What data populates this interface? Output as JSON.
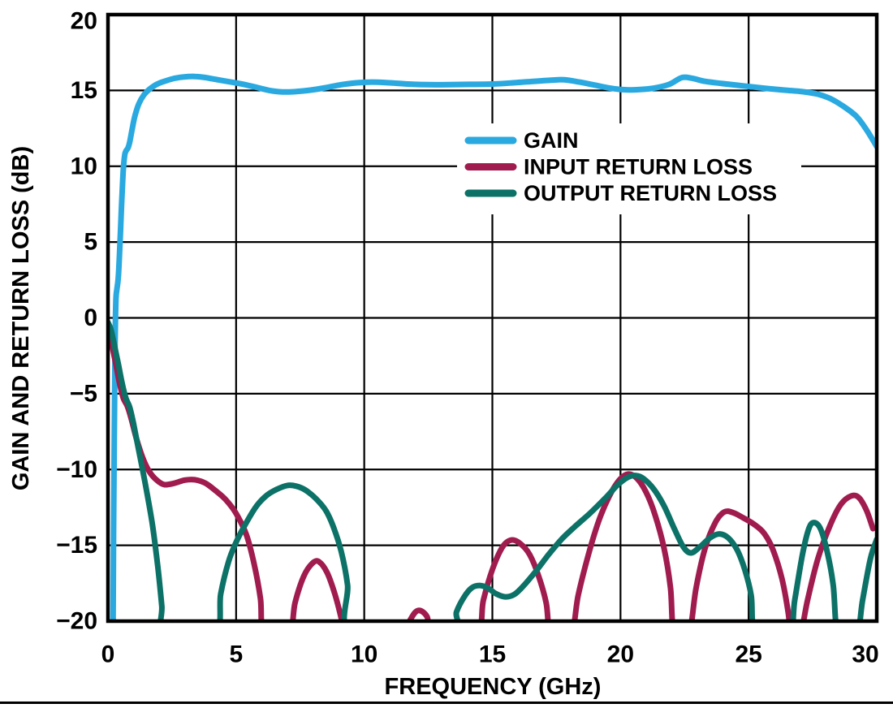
{
  "figure": {
    "background": "#ffffff",
    "axis_color": "#000000",
    "grid_color": "#000000",
    "bottom_rule_color": "#000000"
  },
  "chart_data": {
    "type": "line",
    "title": "",
    "xlabel": "FREQUENCY (GHz)",
    "ylabel": "GAIN AND RETURN LOSS (dB)",
    "xlim": [
      0,
      30
    ],
    "ylim": [
      -20,
      20
    ],
    "x_ticks": [
      0,
      5,
      10,
      15,
      20,
      25,
      30
    ],
    "x_tick_labels": [
      "0",
      "5",
      "10",
      "15",
      "20",
      "25",
      "30"
    ],
    "y_ticks": [
      20,
      15,
      10,
      5,
      0,
      -5,
      -10,
      -15,
      -20
    ],
    "y_tick_labels": [
      "20",
      "15",
      "10",
      "5",
      "0",
      "−5",
      "−10",
      "−15",
      "−20"
    ],
    "grid": true,
    "legend_position": "upper-middle",
    "series": [
      {
        "name": "GAIN",
        "color": "#29A9E0",
        "points": [
          [
            0.2,
            -20
          ],
          [
            0.22,
            -14
          ],
          [
            0.25,
            -7
          ],
          [
            0.28,
            -1.5
          ],
          [
            0.31,
            1.2
          ],
          [
            0.35,
            1.9
          ],
          [
            0.4,
            2.6
          ],
          [
            0.45,
            4.2
          ],
          [
            0.5,
            6.2
          ],
          [
            0.55,
            8.2
          ],
          [
            0.6,
            9.8
          ],
          [
            0.65,
            10.7
          ],
          [
            0.7,
            11.0
          ],
          [
            0.78,
            11.2
          ],
          [
            0.85,
            11.6
          ],
          [
            0.95,
            12.5
          ],
          [
            1.05,
            13.3
          ],
          [
            1.2,
            14.1
          ],
          [
            1.4,
            14.7
          ],
          [
            1.6,
            15.05
          ],
          [
            1.9,
            15.4
          ],
          [
            2.2,
            15.6
          ],
          [
            2.6,
            15.8
          ],
          [
            3.0,
            15.9
          ],
          [
            3.4,
            15.92
          ],
          [
            3.8,
            15.85
          ],
          [
            4.3,
            15.7
          ],
          [
            4.8,
            15.55
          ],
          [
            5.3,
            15.4
          ],
          [
            5.8,
            15.2
          ],
          [
            6.3,
            15.0
          ],
          [
            6.8,
            14.9
          ],
          [
            7.3,
            14.92
          ],
          [
            7.9,
            15.02
          ],
          [
            8.5,
            15.18
          ],
          [
            9.1,
            15.38
          ],
          [
            9.7,
            15.5
          ],
          [
            10.3,
            15.55
          ],
          [
            11.0,
            15.5
          ],
          [
            11.7,
            15.42
          ],
          [
            12.5,
            15.38
          ],
          [
            13.3,
            15.38
          ],
          [
            14.1,
            15.4
          ],
          [
            15.0,
            15.42
          ],
          [
            15.8,
            15.5
          ],
          [
            16.6,
            15.6
          ],
          [
            17.3,
            15.68
          ],
          [
            17.8,
            15.7
          ],
          [
            18.4,
            15.55
          ],
          [
            19.0,
            15.35
          ],
          [
            19.6,
            15.15
          ],
          [
            20.1,
            15.05
          ],
          [
            20.7,
            15.05
          ],
          [
            21.3,
            15.15
          ],
          [
            21.9,
            15.4
          ],
          [
            22.4,
            15.85
          ],
          [
            22.8,
            15.8
          ],
          [
            23.3,
            15.6
          ],
          [
            24.0,
            15.45
          ],
          [
            24.8,
            15.3
          ],
          [
            25.6,
            15.15
          ],
          [
            26.4,
            15.02
          ],
          [
            27.1,
            14.92
          ],
          [
            27.7,
            14.75
          ],
          [
            28.2,
            14.45
          ],
          [
            28.7,
            13.95
          ],
          [
            29.2,
            13.3
          ],
          [
            29.6,
            12.4
          ],
          [
            30.0,
            11.3
          ]
        ]
      },
      {
        "name": "INPUT RETURN LOSS",
        "color": "#A01C4E",
        "points": [
          [
            0.0,
            -0.9
          ],
          [
            0.15,
            -1.8
          ],
          [
            0.3,
            -3.0
          ],
          [
            0.45,
            -4.3
          ],
          [
            0.6,
            -5.3
          ],
          [
            0.75,
            -5.8
          ],
          [
            0.9,
            -6.6
          ],
          [
            1.1,
            -7.9
          ],
          [
            1.35,
            -9.2
          ],
          [
            1.6,
            -10.1
          ],
          [
            1.9,
            -10.7
          ],
          [
            2.2,
            -11.0
          ],
          [
            2.6,
            -10.9
          ],
          [
            3.0,
            -10.7
          ],
          [
            3.4,
            -10.68
          ],
          [
            3.8,
            -10.9
          ],
          [
            4.2,
            -11.4
          ],
          [
            4.6,
            -12.0
          ],
          [
            5.0,
            -12.9
          ],
          [
            5.4,
            -14.3
          ],
          [
            5.7,
            -16.2
          ],
          [
            5.95,
            -18.5
          ],
          [
            6.1,
            -21
          ],
          [
            7.05,
            -21
          ],
          [
            7.3,
            -18.8
          ],
          [
            7.65,
            -17.0
          ],
          [
            8.0,
            -16.15
          ],
          [
            8.25,
            -16.1
          ],
          [
            8.55,
            -16.8
          ],
          [
            8.85,
            -18.2
          ],
          [
            9.1,
            -19.8
          ],
          [
            9.25,
            -21
          ],
          [
            11.5,
            -21
          ],
          [
            11.8,
            -19.9
          ],
          [
            12.1,
            -19.3
          ],
          [
            12.45,
            -19.7
          ],
          [
            12.7,
            -21
          ],
          [
            14.35,
            -21
          ],
          [
            14.65,
            -18.6
          ],
          [
            15.0,
            -16.6
          ],
          [
            15.4,
            -15.1
          ],
          [
            15.75,
            -14.65
          ],
          [
            16.1,
            -14.9
          ],
          [
            16.45,
            -15.6
          ],
          [
            16.8,
            -17.0
          ],
          [
            17.1,
            -18.8
          ],
          [
            17.3,
            -21
          ],
          [
            18.05,
            -21
          ],
          [
            18.35,
            -18.3
          ],
          [
            18.75,
            -15.6
          ],
          [
            19.15,
            -13.4
          ],
          [
            19.55,
            -11.8
          ],
          [
            19.95,
            -10.7
          ],
          [
            20.3,
            -10.3
          ],
          [
            20.65,
            -10.6
          ],
          [
            21.0,
            -11.5
          ],
          [
            21.35,
            -13.0
          ],
          [
            21.7,
            -15.2
          ],
          [
            21.95,
            -17.8
          ],
          [
            22.1,
            -21
          ],
          [
            22.65,
            -21
          ],
          [
            22.95,
            -17.8
          ],
          [
            23.3,
            -15.2
          ],
          [
            23.7,
            -13.5
          ],
          [
            24.05,
            -12.8
          ],
          [
            24.4,
            -12.85
          ],
          [
            24.8,
            -13.2
          ],
          [
            25.2,
            -13.6
          ],
          [
            25.6,
            -14.2
          ],
          [
            25.95,
            -15.3
          ],
          [
            26.3,
            -17.2
          ],
          [
            26.55,
            -19.5
          ],
          [
            26.65,
            -21
          ],
          [
            27.0,
            -21
          ],
          [
            27.3,
            -18.6
          ],
          [
            27.7,
            -15.9
          ],
          [
            28.2,
            -13.6
          ],
          [
            28.6,
            -12.3
          ],
          [
            29.0,
            -11.75
          ],
          [
            29.3,
            -11.85
          ],
          [
            29.6,
            -12.7
          ],
          [
            29.85,
            -13.9
          ]
        ]
      },
      {
        "name": "OUTPUT RETURN LOSS",
        "color": "#0C7167",
        "points": [
          [
            0.0,
            -0.3
          ],
          [
            0.12,
            -0.8
          ],
          [
            0.25,
            -1.8
          ],
          [
            0.4,
            -3.0
          ],
          [
            0.55,
            -4.3
          ],
          [
            0.7,
            -5.3
          ],
          [
            0.85,
            -5.9
          ],
          [
            1.0,
            -7.0
          ],
          [
            1.15,
            -8.3
          ],
          [
            1.35,
            -10.0
          ],
          [
            1.55,
            -11.8
          ],
          [
            1.75,
            -13.8
          ],
          [
            1.95,
            -16.5
          ],
          [
            2.1,
            -19.0
          ],
          [
            2.2,
            -21
          ],
          [
            4.15,
            -21
          ],
          [
            4.4,
            -18.2
          ],
          [
            4.7,
            -16.1
          ],
          [
            5.0,
            -14.8
          ],
          [
            5.4,
            -13.5
          ],
          [
            5.8,
            -12.4
          ],
          [
            6.2,
            -11.7
          ],
          [
            6.6,
            -11.3
          ],
          [
            7.0,
            -11.05
          ],
          [
            7.35,
            -11.1
          ],
          [
            7.7,
            -11.35
          ],
          [
            8.1,
            -11.9
          ],
          [
            8.5,
            -12.7
          ],
          [
            8.8,
            -13.8
          ],
          [
            9.1,
            -15.4
          ],
          [
            9.35,
            -17.6
          ],
          [
            9.55,
            -21
          ],
          [
            13.35,
            -21
          ],
          [
            13.6,
            -19.4
          ],
          [
            13.9,
            -18.4
          ],
          [
            14.2,
            -17.8
          ],
          [
            14.5,
            -17.65
          ],
          [
            14.8,
            -17.8
          ],
          [
            15.15,
            -18.2
          ],
          [
            15.5,
            -18.4
          ],
          [
            15.85,
            -18.25
          ],
          [
            16.2,
            -17.7
          ],
          [
            16.7,
            -16.7
          ],
          [
            17.2,
            -15.6
          ],
          [
            17.7,
            -14.6
          ],
          [
            18.2,
            -13.8
          ],
          [
            18.8,
            -12.9
          ],
          [
            19.4,
            -11.9
          ],
          [
            19.9,
            -11.0
          ],
          [
            20.3,
            -10.5
          ],
          [
            20.6,
            -10.4
          ],
          [
            20.9,
            -10.6
          ],
          [
            21.3,
            -11.3
          ],
          [
            21.7,
            -12.4
          ],
          [
            22.1,
            -13.9
          ],
          [
            22.45,
            -15.1
          ],
          [
            22.75,
            -15.5
          ],
          [
            23.1,
            -15.1
          ],
          [
            23.5,
            -14.5
          ],
          [
            23.85,
            -14.25
          ],
          [
            24.2,
            -14.5
          ],
          [
            24.55,
            -15.3
          ],
          [
            24.85,
            -16.6
          ],
          [
            25.1,
            -18.3
          ],
          [
            25.3,
            -21
          ],
          [
            26.55,
            -21
          ],
          [
            26.8,
            -18.6
          ],
          [
            27.1,
            -15.6
          ],
          [
            27.35,
            -13.9
          ],
          [
            27.55,
            -13.5
          ],
          [
            27.8,
            -13.9
          ],
          [
            28.05,
            -15.3
          ],
          [
            28.3,
            -17.6
          ],
          [
            28.5,
            -21
          ],
          [
            29.2,
            -21
          ],
          [
            29.45,
            -18.6
          ],
          [
            29.75,
            -15.9
          ],
          [
            30.0,
            -14.6
          ]
        ]
      }
    ]
  }
}
